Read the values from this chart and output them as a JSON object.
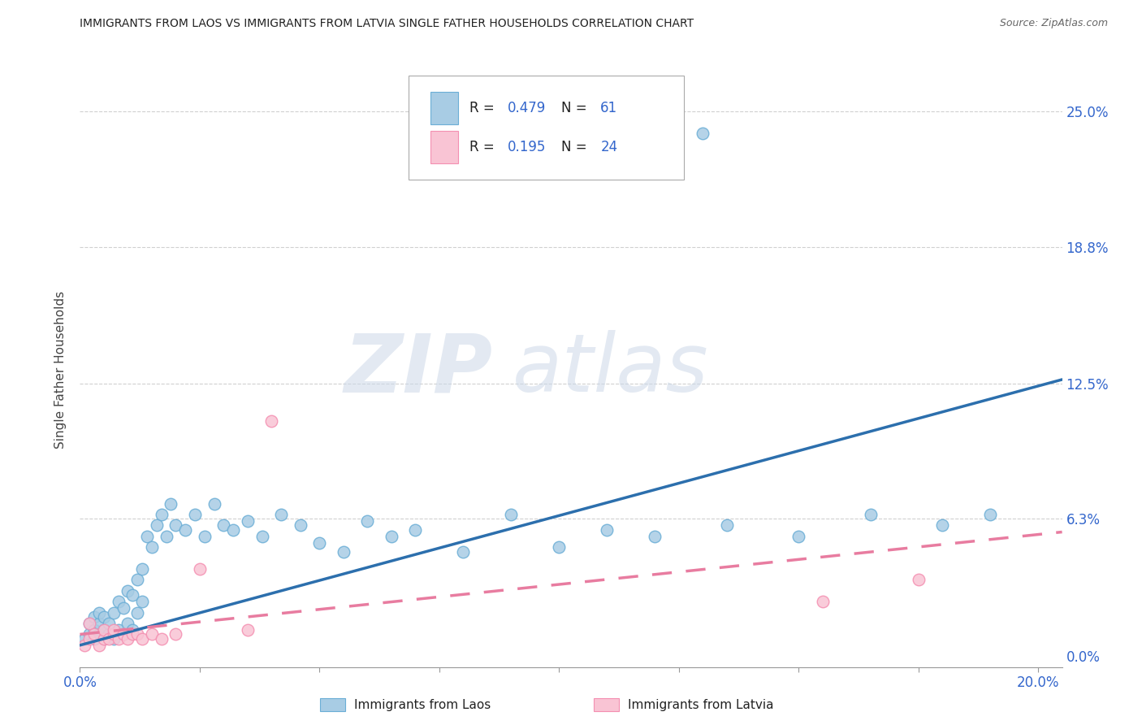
{
  "title": "IMMIGRANTS FROM LAOS VS IMMIGRANTS FROM LATVIA SINGLE FATHER HOUSEHOLDS CORRELATION CHART",
  "source": "Source: ZipAtlas.com",
  "ylabel": "Single Father Households",
  "y_tick_labels": [
    "0.0%",
    "6.3%",
    "12.5%",
    "18.8%",
    "25.0%"
  ],
  "y_tick_values": [
    0.0,
    0.063,
    0.125,
    0.188,
    0.25
  ],
  "x_min": 0.0,
  "x_max": 0.205,
  "y_min": -0.005,
  "y_max": 0.268,
  "laos_color": "#6baed6",
  "laos_color_fill": "#a8cce4",
  "latvia_color": "#f48fb1",
  "latvia_color_fill": "#f9c4d4",
  "blue_line_color": "#2c6fad",
  "pink_line_color": "#e87ca0",
  "R_laos": "0.479",
  "N_laos": "61",
  "R_latvia": "0.195",
  "N_latvia": "24",
  "watermark_zip": "ZIP",
  "watermark_atlas": "atlas",
  "grid_color": "#d0d0d0",
  "blue_line_x": [
    0.0,
    0.205
  ],
  "blue_line_y": [
    0.005,
    0.127
  ],
  "pink_line_x": [
    0.0,
    0.205
  ],
  "pink_line_y": [
    0.01,
    0.057
  ],
  "laos_x": [
    0.001,
    0.002,
    0.002,
    0.003,
    0.003,
    0.003,
    0.004,
    0.004,
    0.004,
    0.005,
    0.005,
    0.005,
    0.006,
    0.006,
    0.007,
    0.007,
    0.008,
    0.008,
    0.009,
    0.009,
    0.01,
    0.01,
    0.011,
    0.011,
    0.012,
    0.012,
    0.013,
    0.013,
    0.014,
    0.015,
    0.016,
    0.017,
    0.018,
    0.019,
    0.02,
    0.022,
    0.024,
    0.026,
    0.028,
    0.03,
    0.032,
    0.035,
    0.038,
    0.042,
    0.046,
    0.05,
    0.055,
    0.06,
    0.065,
    0.07,
    0.08,
    0.09,
    0.1,
    0.11,
    0.12,
    0.135,
    0.15,
    0.165,
    0.18,
    0.19,
    0.13
  ],
  "laos_y": [
    0.008,
    0.01,
    0.015,
    0.008,
    0.012,
    0.018,
    0.01,
    0.015,
    0.02,
    0.008,
    0.012,
    0.018,
    0.01,
    0.015,
    0.008,
    0.02,
    0.012,
    0.025,
    0.01,
    0.022,
    0.015,
    0.03,
    0.012,
    0.028,
    0.02,
    0.035,
    0.025,
    0.04,
    0.055,
    0.05,
    0.06,
    0.065,
    0.055,
    0.07,
    0.06,
    0.058,
    0.065,
    0.055,
    0.07,
    0.06,
    0.058,
    0.062,
    0.055,
    0.065,
    0.06,
    0.052,
    0.048,
    0.062,
    0.055,
    0.058,
    0.048,
    0.065,
    0.05,
    0.058,
    0.055,
    0.06,
    0.055,
    0.065,
    0.06,
    0.065,
    0.24
  ],
  "latvia_x": [
    0.001,
    0.002,
    0.002,
    0.003,
    0.004,
    0.005,
    0.005,
    0.006,
    0.007,
    0.007,
    0.008,
    0.009,
    0.01,
    0.011,
    0.012,
    0.013,
    0.015,
    0.017,
    0.02,
    0.025,
    0.035,
    0.04,
    0.155,
    0.175
  ],
  "latvia_y": [
    0.005,
    0.008,
    0.015,
    0.01,
    0.005,
    0.008,
    0.012,
    0.008,
    0.01,
    0.012,
    0.008,
    0.01,
    0.008,
    0.01,
    0.01,
    0.008,
    0.01,
    0.008,
    0.01,
    0.04,
    0.012,
    0.108,
    0.025,
    0.035
  ]
}
